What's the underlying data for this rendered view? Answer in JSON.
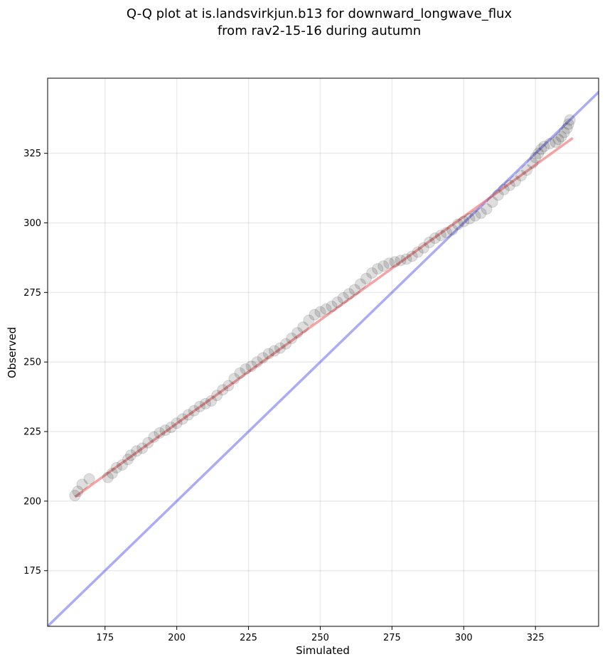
{
  "chart_data": {
    "type": "scatter",
    "title_line1": "Q-Q plot at is.landsvirkjun.b13 for downward_longwave_flux",
    "title_line2": "from rav2-15-16 during autumn",
    "xlabel": "Simulated",
    "ylabel": "Observed",
    "xlim": [
      155,
      347
    ],
    "ylim": [
      155,
      352
    ],
    "xticks": [
      175,
      200,
      225,
      250,
      275,
      300,
      325
    ],
    "yticks": [
      175,
      200,
      225,
      250,
      275,
      300,
      325
    ],
    "grid": true,
    "identity_line": {
      "name": "1:1 line",
      "color": "#6666ee"
    },
    "fit_line": {
      "name": "linear fit",
      "color": "#ee6666",
      "x": [
        164.5,
        338.0
      ],
      "y": [
        201.5,
        330.5
      ]
    },
    "point_color": "#000000",
    "series": [
      {
        "name": "quantiles",
        "points": [
          [
            164.5,
            202
          ],
          [
            165.5,
            203.5
          ],
          [
            167,
            206
          ],
          [
            169.5,
            208
          ],
          [
            176,
            208.5
          ],
          [
            177.5,
            210
          ],
          [
            179,
            212
          ],
          [
            181,
            213
          ],
          [
            183,
            215
          ],
          [
            184,
            216.5
          ],
          [
            186,
            218
          ],
          [
            188,
            219
          ],
          [
            190,
            221
          ],
          [
            192,
            223
          ],
          [
            194,
            224.5
          ],
          [
            196,
            225.5
          ],
          [
            198,
            226.5
          ],
          [
            200,
            228
          ],
          [
            202,
            229.5
          ],
          [
            204,
            231
          ],
          [
            206,
            232.5
          ],
          [
            208,
            234
          ],
          [
            210,
            235
          ],
          [
            212,
            236
          ],
          [
            214,
            238
          ],
          [
            216,
            240
          ],
          [
            218,
            241.5
          ],
          [
            220,
            244
          ],
          [
            222,
            246
          ],
          [
            224,
            247.5
          ],
          [
            226,
            248.5
          ],
          [
            228,
            250
          ],
          [
            230,
            251.5
          ],
          [
            232,
            253
          ],
          [
            234,
            254
          ],
          [
            236,
            255
          ],
          [
            238,
            256.5
          ],
          [
            240,
            258.5
          ],
          [
            242,
            260.5
          ],
          [
            244,
            262.5
          ],
          [
            246,
            265
          ],
          [
            248,
            267
          ],
          [
            250,
            268
          ],
          [
            252,
            269
          ],
          [
            254,
            270
          ],
          [
            256,
            271.5
          ],
          [
            258,
            273
          ],
          [
            260,
            274.5
          ],
          [
            262,
            276
          ],
          [
            264,
            278
          ],
          [
            266,
            280
          ],
          [
            268,
            282
          ],
          [
            270,
            283.5
          ],
          [
            272,
            284.5
          ],
          [
            274,
            285.5
          ],
          [
            276,
            286
          ],
          [
            278,
            286.5
          ],
          [
            280,
            287
          ],
          [
            282,
            288
          ],
          [
            284,
            289.5
          ],
          [
            286,
            291
          ],
          [
            288,
            293
          ],
          [
            290,
            294.5
          ],
          [
            292,
            295.5
          ],
          [
            294,
            296.5
          ],
          [
            296,
            297.5
          ],
          [
            298,
            299.5
          ],
          [
            300,
            300.5
          ],
          [
            302,
            301.5
          ],
          [
            304,
            302.5
          ],
          [
            306,
            303.5
          ],
          [
            308,
            305
          ],
          [
            310,
            307.5
          ],
          [
            312,
            310
          ],
          [
            314,
            312
          ],
          [
            316,
            313.5
          ],
          [
            318,
            315
          ],
          [
            320,
            317
          ],
          [
            322,
            319
          ],
          [
            324,
            321.5
          ],
          [
            325,
            323.5
          ],
          [
            326,
            325
          ],
          [
            327,
            326.5
          ],
          [
            328,
            327.5
          ],
          [
            330,
            328.5
          ],
          [
            332,
            329
          ],
          [
            333,
            330
          ],
          [
            334,
            331
          ],
          [
            335,
            332.5
          ],
          [
            336,
            334
          ],
          [
            336.5,
            335.5
          ],
          [
            337,
            337
          ]
        ]
      }
    ]
  }
}
